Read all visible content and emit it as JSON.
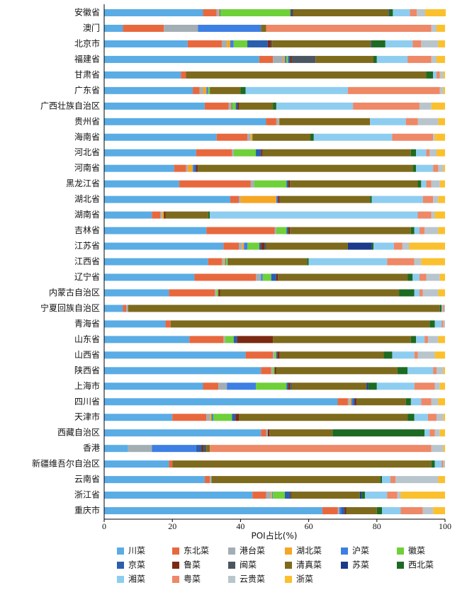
{
  "chart_data": {
    "type": "stacked_barh",
    "xlabel": "POI占比(%)",
    "xlim": [
      0,
      100
    ],
    "xticks": [
      0,
      20,
      40,
      60,
      80,
      100
    ],
    "categories": [
      "安徽省",
      "澳门",
      "北京市",
      "福建省",
      "甘肃省",
      "广东省",
      "广西壮族自治区",
      "贵州省",
      "海南省",
      "河北省",
      "河南省",
      "黑龙江省",
      "湖北省",
      "湖南省",
      "吉林省",
      "江苏省",
      "江西省",
      "辽宁省",
      "内蒙古自治区",
      "宁夏回族自治区",
      "青海省",
      "山东省",
      "山西省",
      "陕西省",
      "上海市",
      "四川省",
      "天津市",
      "西藏自治区",
      "香港",
      "新疆维吾尔自治区",
      "云南省",
      "浙江省",
      "重庆市"
    ],
    "series": [
      {
        "name": "川菜",
        "color": "#5aace4",
        "values": [
          29,
          5.5,
          24.5,
          45.5,
          22.5,
          26,
          29.5,
          47.5,
          33,
          27,
          20.5,
          22,
          37,
          14,
          30,
          35,
          30.5,
          26.5,
          19,
          5.5,
          18,
          25,
          41.5,
          46,
          29,
          68.5,
          20,
          46,
          7,
          19,
          29.5,
          43.5,
          64
        ]
      },
      {
        "name": "东北菜",
        "color": "#e8683e",
        "values": [
          4,
          12,
          10,
          4,
          1.5,
          2,
          7,
          3,
          9,
          10.5,
          3.5,
          21,
          2.5,
          2.5,
          20,
          4.5,
          4,
          18,
          13.5,
          1,
          1.5,
          10,
          8,
          3,
          4.5,
          3,
          10,
          1.5,
          0,
          1,
          1.5,
          4,
          4.5
        ]
      },
      {
        "name": "港台菜",
        "color": "#a3aeb4",
        "values": [
          0.5,
          10,
          1.5,
          3,
          0,
          1,
          0.5,
          0.5,
          1,
          0.5,
          0.5,
          1,
          0.5,
          0.5,
          0.5,
          1,
          0.5,
          1.5,
          0.5,
          0.5,
          0,
          0.5,
          0.5,
          0.5,
          2.5,
          0.5,
          1,
          0.5,
          7,
          0,
          0.5,
          1.5,
          0.5
        ]
      },
      {
        "name": "湖北菜",
        "color": "#f5a623",
        "values": [
          0.3,
          0,
          1,
          0.5,
          0,
          1,
          0.3,
          0.3,
          0.5,
          0,
          1.5,
          0,
          10.5,
          0.5,
          0,
          0.5,
          0.5,
          0,
          0,
          0,
          0,
          0,
          0,
          0,
          0,
          0.5,
          0.5,
          0,
          0,
          0,
          0,
          0.3,
          0
        ]
      },
      {
        "name": "沪菜",
        "color": "#3d7fe3",
        "values": [
          0.3,
          18.5,
          1,
          0.5,
          0,
          0.5,
          0.3,
          0.2,
          0,
          0,
          0.5,
          0,
          0.3,
          0,
          0,
          1,
          0.3,
          0.5,
          0,
          0,
          0,
          0,
          0,
          0,
          8.5,
          0.5,
          0.5,
          0,
          13,
          0,
          0,
          0.2,
          0.5
        ]
      },
      {
        "name": "徽菜",
        "color": "#6fd03a",
        "values": [
          20.5,
          0,
          4,
          0.5,
          0,
          0.5,
          1,
          0,
          0,
          6.5,
          0,
          9.5,
          0,
          0,
          3,
          3.5,
          0.5,
          2.5,
          0.5,
          0,
          0,
          2.5,
          0.5,
          0.5,
          9,
          0,
          5.5,
          0,
          0,
          0,
          0,
          3.5,
          0
        ]
      },
      {
        "name": "京菜",
        "color": "#2a5fae",
        "values": [
          0.3,
          0,
          6,
          0.5,
          0,
          0,
          0.5,
          0,
          0,
          1.5,
          0.5,
          0.5,
          0.2,
          0,
          0.5,
          0.5,
          0,
          1.5,
          0,
          0,
          0,
          1,
          0.3,
          0,
          0.5,
          0.5,
          1,
          0,
          1.5,
          0,
          0,
          1.5,
          1
        ]
      },
      {
        "name": "鲁菜",
        "color": "#7a2a12",
        "values": [
          0.3,
          0,
          1,
          0.5,
          0,
          0,
          0.4,
          0,
          0,
          0.5,
          0.5,
          0.5,
          0.5,
          0.5,
          0.5,
          1,
          0.2,
          0.5,
          0.5,
          0,
          0,
          10.5,
          0.7,
          0.5,
          0.5,
          0.5,
          1,
          0.5,
          0.5,
          0,
          0,
          0.3,
          0.5
        ]
      },
      {
        "name": "闽菜",
        "color": "#4b5660",
        "values": [
          0.3,
          0,
          0.3,
          7,
          0,
          0,
          0,
          0,
          0,
          0,
          0,
          0,
          0,
          0,
          0,
          0.5,
          0,
          0,
          0,
          0,
          0,
          0,
          0,
          0,
          0.5,
          0,
          0,
          0,
          1,
          0,
          0,
          0.2,
          0
        ]
      },
      {
        "name": "清真菜",
        "color": "#7d6a1c",
        "values": [
          28,
          1.5,
          29,
          17,
          70.5,
          9,
          10,
          26.5,
          17,
          43.5,
          63,
          37.5,
          26.5,
          12.5,
          35.5,
          24,
          23,
          38,
          52.5,
          91.5,
          76,
          40.5,
          30.5,
          35.5,
          22,
          14.5,
          49.5,
          18.5,
          1,
          76,
          49.5,
          20,
          9
        ]
      },
      {
        "name": "苏菜",
        "color": "#1b3a8c",
        "values": [
          0.2,
          0,
          0.2,
          0,
          0,
          0,
          0,
          0,
          0,
          0,
          0,
          0,
          0,
          0,
          0,
          7,
          0,
          0,
          0,
          0,
          0,
          0,
          0,
          0,
          0.5,
          0,
          0,
          0,
          0,
          0,
          0,
          0.5,
          0
        ]
      },
      {
        "name": "西北菜",
        "color": "#1d6a22",
        "values": [
          1,
          0,
          4,
          1,
          2,
          1.5,
          1,
          0,
          1,
          1.5,
          1,
          1,
          0.5,
          0.5,
          1,
          0.5,
          0.5,
          1.5,
          4.5,
          0.5,
          1.5,
          1.5,
          2.5,
          3,
          2.5,
          1.5,
          2,
          27,
          0,
          1,
          0.5,
          1,
          1.5
        ]
      },
      {
        "name": "湘菜",
        "color": "#8dcdf0",
        "values": [
          5,
          0,
          8,
          9,
          1,
          30,
          22.5,
          10.5,
          23,
          3,
          5,
          1.5,
          15,
          61,
          1.5,
          6,
          23,
          2,
          1.5,
          0.3,
          2,
          2.5,
          6.5,
          7.5,
          11,
          3,
          4,
          1.5,
          0,
          2,
          2.5,
          6.5,
          5.5
        ]
      },
      {
        "name": "粤菜",
        "color": "#ee8866",
        "values": [
          2,
          48.5,
          2.5,
          7,
          1,
          27,
          19.5,
          3.5,
          12,
          1,
          1.5,
          1.5,
          3,
          4,
          1.5,
          2.5,
          8,
          2,
          1,
          0.4,
          0.5,
          1,
          1,
          1,
          6,
          3,
          2.5,
          1.5,
          65,
          0.5,
          1.5,
          3,
          6.5
        ]
      },
      {
        "name": "云贵菜",
        "color": "#b9c5cc",
        "values": [
          2.5,
          1.5,
          5,
          1.5,
          1,
          1,
          3.5,
          6,
          0.5,
          2,
          1.5,
          2.5,
          1.5,
          1,
          4,
          2,
          2,
          4,
          4.5,
          0.3,
          0.5,
          3,
          5,
          2,
          1.5,
          2,
          2,
          1.5,
          3.5,
          0.5,
          12.5,
          1,
          3
        ]
      },
      {
        "name": "浙菜",
        "color": "#fbc02d",
        "values": [
          6,
          2.5,
          2,
          2.5,
          0.5,
          0.5,
          4,
          2,
          3,
          2.5,
          0.5,
          1.5,
          2,
          3,
          2,
          10.5,
          7,
          1.5,
          2,
          0,
          0,
          2,
          3,
          0.5,
          1.5,
          2,
          0.5,
          1.5,
          0.5,
          0,
          2,
          13,
          3.5
        ]
      }
    ]
  }
}
